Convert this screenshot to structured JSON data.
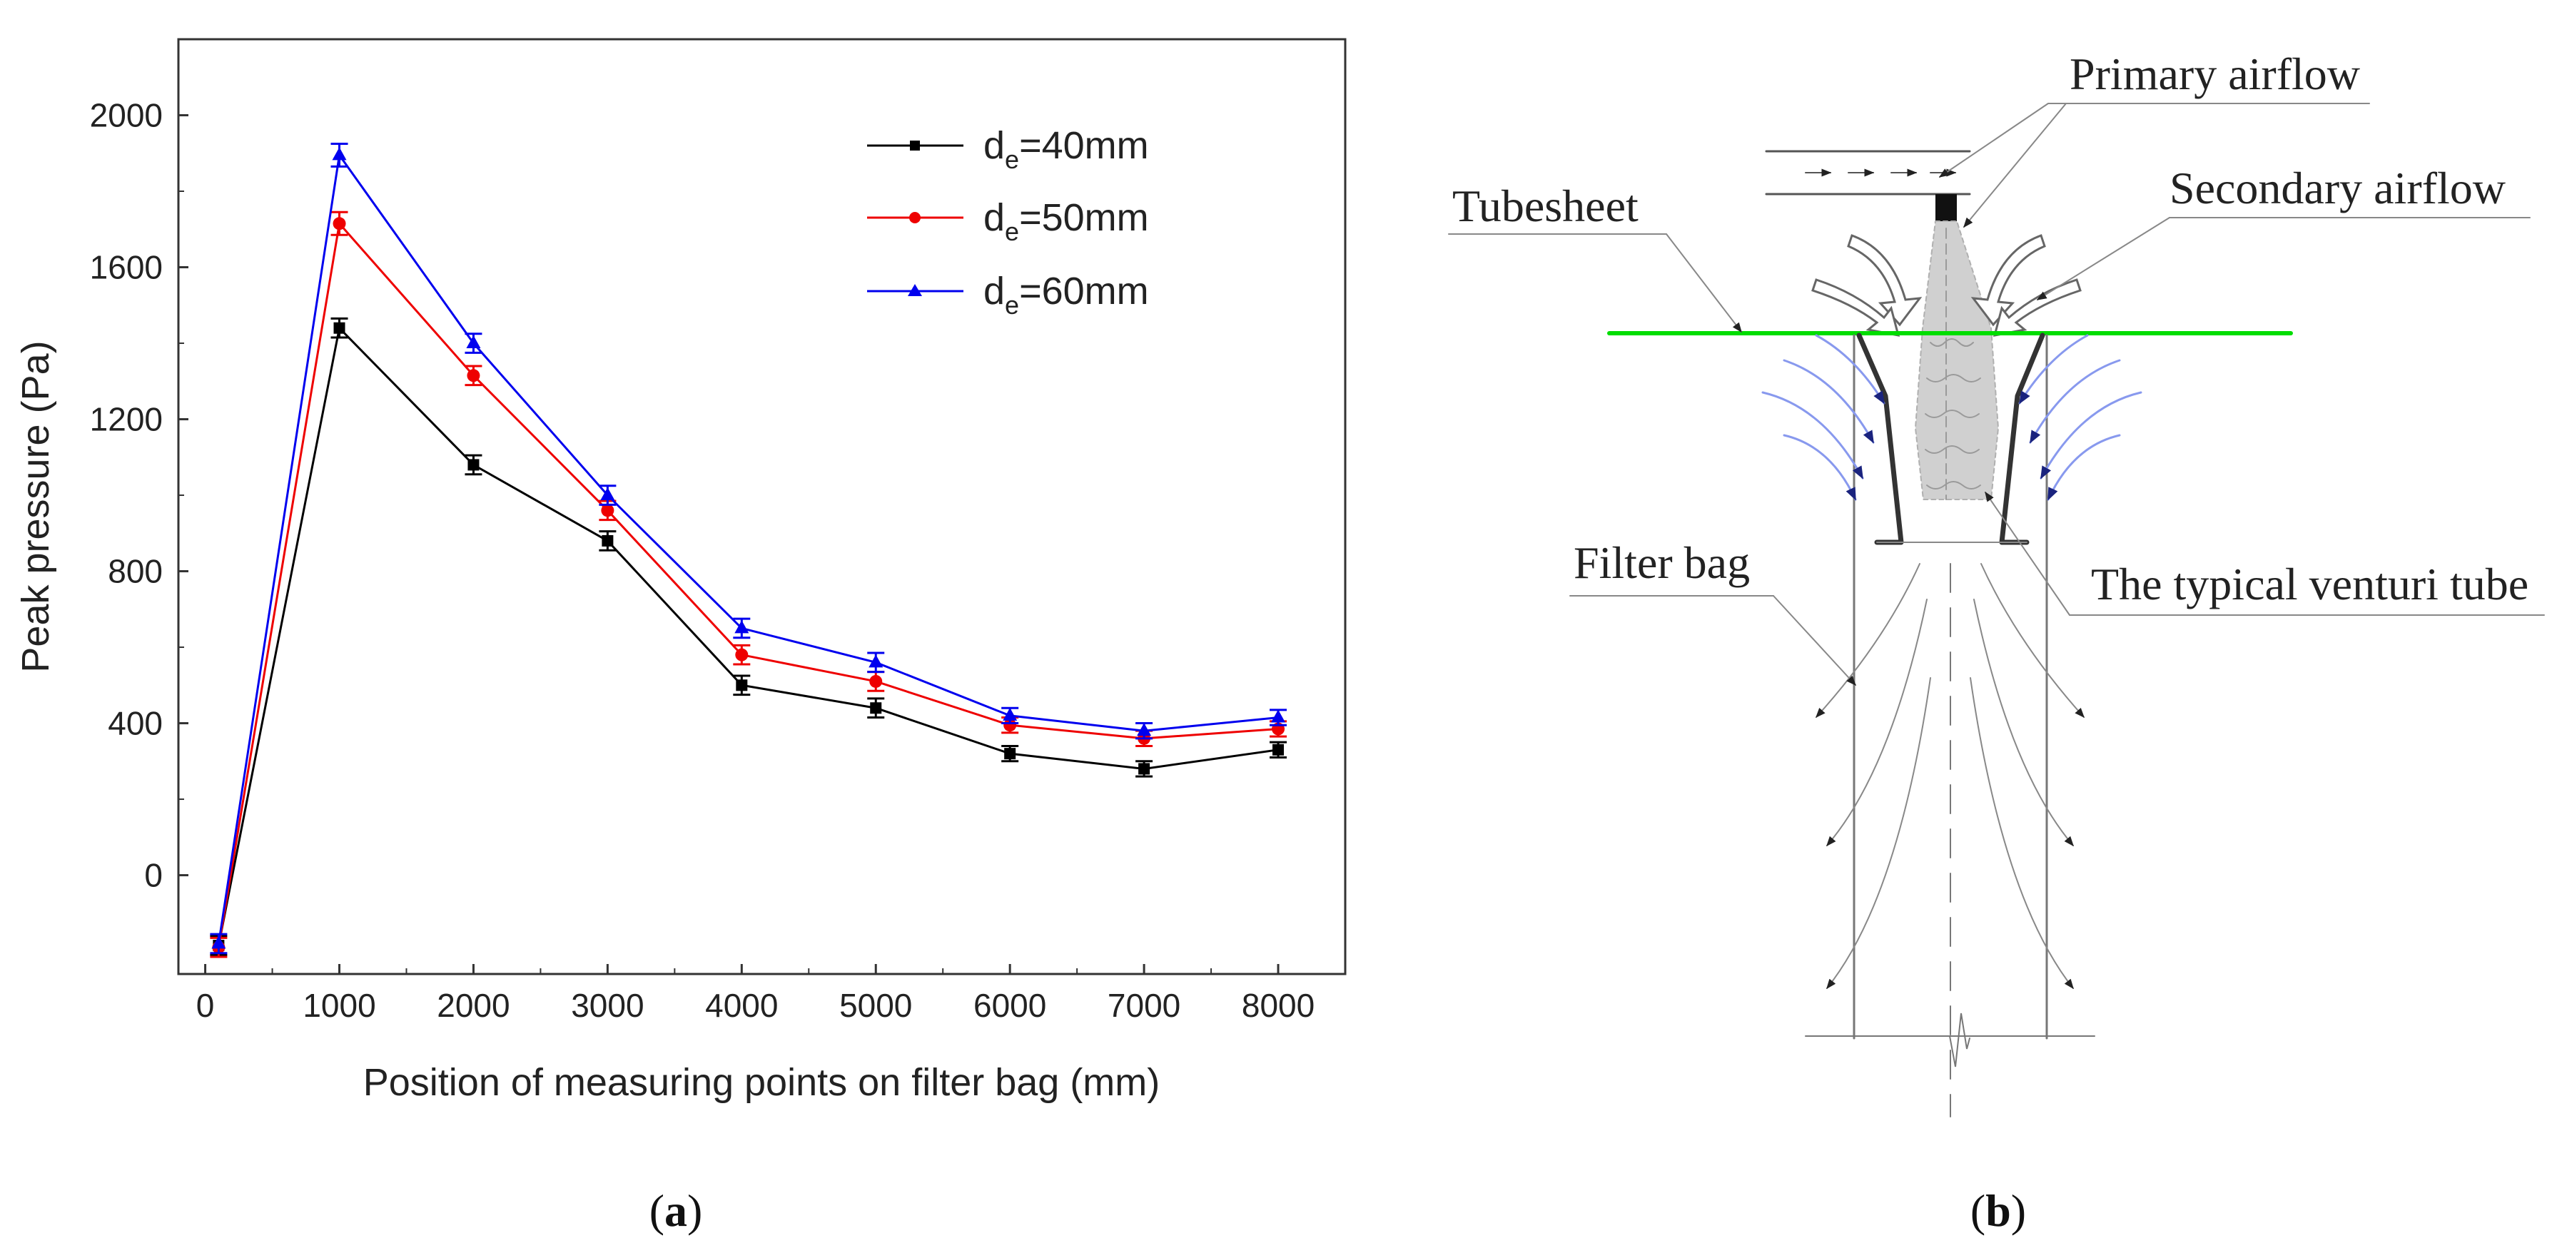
{
  "colors": {
    "series_40": "#000000",
    "series_50": "#ee0000",
    "series_60": "#0000ee",
    "tubesheet": "#00dd00",
    "secondary_flow": "#8899ee",
    "diagram_line": "#555555"
  },
  "chart_data": {
    "type": "line",
    "title": "",
    "xlabel": "Position of measuring points on filter bag (mm)",
    "ylabel": "Peak pressure (Pa)",
    "xlim": [
      -200,
      8500
    ],
    "ylim": [
      -260,
      2200
    ],
    "x": [
      100,
      1000,
      2000,
      3000,
      4000,
      5000,
      6000,
      7000,
      8000
    ],
    "x_ticks": [
      "0",
      "1000",
      "2000",
      "3000",
      "4000",
      "5000",
      "6000",
      "7000",
      "8000"
    ],
    "y_ticks": [
      "0",
      "400",
      "800",
      "1200",
      "1600",
      "2000"
    ],
    "legend_position": "top-right",
    "series": [
      {
        "name": "de=40mm",
        "legend_main": "d",
        "legend_sub": "e",
        "legend_rest": "=40mm",
        "marker": "square",
        "values": [
          -185,
          1440,
          1080,
          880,
          500,
          440,
          320,
          280,
          330
        ],
        "errors": [
          25,
          25,
          25,
          25,
          25,
          25,
          20,
          20,
          20
        ]
      },
      {
        "name": "de=50mm",
        "legend_main": "d",
        "legend_sub": "e",
        "legend_rest": "=50mm",
        "marker": "circle",
        "values": [
          -190,
          1715,
          1315,
          960,
          580,
          510,
          395,
          360,
          385
        ],
        "errors": [
          25,
          30,
          25,
          25,
          25,
          25,
          20,
          20,
          20
        ]
      },
      {
        "name": "de=60mm",
        "legend_main": "d",
        "legend_sub": "e",
        "legend_rest": "=60mm",
        "marker": "triangle",
        "values": [
          -180,
          1895,
          1400,
          1000,
          650,
          560,
          420,
          380,
          415
        ],
        "errors": [
          25,
          30,
          25,
          25,
          25,
          25,
          20,
          20,
          20
        ]
      }
    ]
  },
  "diagram": {
    "labels": {
      "primary_airflow": "Primary airflow",
      "secondary_airflow": "Secondary airflow",
      "tubesheet": "Tubesheet",
      "filter_bag": "Filter bag",
      "venturi": "The typical venturi tube"
    }
  },
  "captions": {
    "a_open": "(",
    "a_letter": "a",
    "a_close": ")",
    "b_open": "(",
    "b_letter": "b",
    "b_close": ")"
  }
}
